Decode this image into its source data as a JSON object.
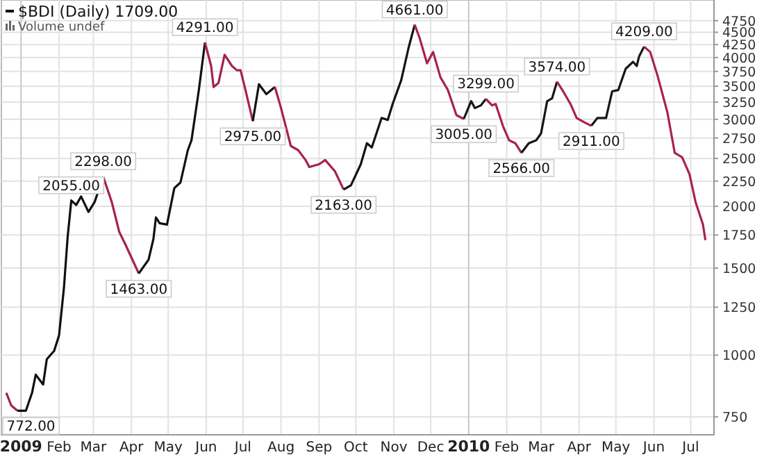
{
  "chart_data": {
    "type": "line",
    "title": "$BDI (Daily) 1709.00",
    "subtitle": "Volume undef",
    "xlim": [
      "2008-12-16",
      "2010-07-20"
    ],
    "xticks": [
      {
        "value": "2009-01",
        "label": "2009"
      },
      {
        "value": "2009-02",
        "label": "Feb"
      },
      {
        "value": "2009-03",
        "label": "Mar"
      },
      {
        "value": "2009-04",
        "label": "Apr"
      },
      {
        "value": "2009-05",
        "label": "May"
      },
      {
        "value": "2009-06",
        "label": "Jun"
      },
      {
        "value": "2009-07",
        "label": "Jul"
      },
      {
        "value": "2009-08",
        "label": "Aug"
      },
      {
        "value": "2009-09",
        "label": "Sep"
      },
      {
        "value": "2009-10",
        "label": "Oct"
      },
      {
        "value": "2009-11",
        "label": "Nov"
      },
      {
        "value": "2009-12",
        "label": "Dec"
      },
      {
        "value": "2010-01",
        "label": "2010"
      },
      {
        "value": "2010-02",
        "label": "Feb"
      },
      {
        "value": "2010-03",
        "label": "Mar"
      },
      {
        "value": "2010-04",
        "label": "Apr"
      },
      {
        "value": "2010-05",
        "label": "May"
      },
      {
        "value": "2010-06",
        "label": "Jun"
      },
      {
        "value": "2010-07",
        "label": "Jul"
      }
    ],
    "ylim": [
      690,
      5230
    ],
    "yticks": [
      750,
      1000,
      1250,
      1500,
      1750,
      2000,
      2250,
      2500,
      2750,
      3000,
      3250,
      3500,
      3750,
      4000,
      4250,
      4500,
      4750
    ],
    "log": true,
    "grid": true,
    "series": [
      {
        "color": "#a3224f",
        "x": [
          "2008-12-20",
          "2008-12-24",
          "2008-12-29"
        ],
        "values": [
          839,
          791,
          772
        ]
      },
      {
        "color": "#101010",
        "x": [
          "2008-12-29",
          "2009-01-05",
          "2009-01-10",
          "2009-01-13",
          "2009-01-19",
          "2009-01-22",
          "2009-01-28",
          "2009-02-01",
          "2009-02-05",
          "2009-02-08",
          "2009-02-11",
          "2009-02-15",
          "2009-02-19",
          "2009-02-25",
          "2009-03-02",
          "2009-03-09"
        ],
        "values": [
          772,
          772,
          839,
          913,
          872,
          981,
          1020,
          1096,
          1369,
          1732,
          2055,
          2013,
          2094,
          1949,
          2040,
          2298
        ]
      },
      {
        "color": "#a4224f",
        "x": [
          "2009-03-09",
          "2009-03-16",
          "2009-03-22",
          "2009-03-27",
          "2009-04-07"
        ],
        "values": [
          2298,
          2040,
          1778,
          1677,
          1463
        ]
      },
      {
        "color": "#111111",
        "x": [
          "2009-04-07",
          "2009-04-15",
          "2009-04-19",
          "2009-04-21",
          "2009-04-24",
          "2009-04-30",
          "2009-05-06",
          "2009-05-11",
          "2009-05-17",
          "2009-05-20",
          "2009-05-26",
          "2009-05-31"
        ],
        "values": [
          1463,
          1560,
          1721,
          1899,
          1849,
          1837,
          2177,
          2235,
          2598,
          2720,
          3439,
          4291
        ]
      },
      {
        "color": "#a5224f",
        "x": [
          "2009-05-31",
          "2009-06-05",
          "2009-06-07",
          "2009-06-11",
          "2009-06-16",
          "2009-06-22",
          "2009-06-26",
          "2009-06-29",
          "2009-07-03",
          "2009-07-09"
        ],
        "values": [
          4291,
          3846,
          3487,
          3554,
          4051,
          3846,
          3770,
          3770,
          3439,
          2975
        ]
      },
      {
        "color": "#131313",
        "x": [
          "2009-07-09",
          "2009-07-14",
          "2009-07-20",
          "2009-07-27"
        ],
        "values": [
          2975,
          3532,
          3374,
          3487
        ]
      },
      {
        "color": "#a6224f",
        "x": [
          "2009-07-27",
          "2009-08-01",
          "2009-08-09",
          "2009-08-15",
          "2009-08-21",
          "2009-08-24",
          "2009-09-01",
          "2009-09-06",
          "2009-09-14",
          "2009-09-21"
        ],
        "values": [
          3487,
          3161,
          2649,
          2598,
          2482,
          2402,
          2433,
          2482,
          2354,
          2163
        ]
      },
      {
        "color": "#141414",
        "x": [
          "2009-09-21",
          "2009-09-27",
          "2009-10-05",
          "2009-10-10",
          "2009-10-14",
          "2009-10-22",
          "2009-10-27",
          "2009-10-31",
          "2009-11-07",
          "2009-11-13",
          "2009-11-18"
        ],
        "values": [
          2163,
          2206,
          2433,
          2684,
          2632,
          3019,
          2990,
          3222,
          3601,
          4187,
          4661
        ]
      },
      {
        "color": "#a7224f",
        "x": [
          "2009-11-18",
          "2009-11-22",
          "2009-11-28",
          "2009-12-03",
          "2009-12-09",
          "2009-12-15",
          "2009-12-22",
          "2009-12-28"
        ],
        "values": [
          4661,
          4381,
          3894,
          4105,
          3648,
          3439,
          3059,
          3005
        ]
      },
      {
        "color": "#151515",
        "x": [
          "2009-12-28",
          "2010-01-03",
          "2010-01-06",
          "2010-01-11",
          "2010-01-15"
        ],
        "values": [
          3005,
          3265,
          3161,
          3202,
          3299
        ]
      },
      {
        "color": "#a8224f",
        "x": [
          "2010-01-15",
          "2010-01-20",
          "2010-01-23",
          "2010-01-29",
          "2010-02-03",
          "2010-02-08",
          "2010-02-13"
        ],
        "values": [
          3299,
          3202,
          3222,
          2904,
          2720,
          2684,
          2566
        ]
      },
      {
        "color": "#161616",
        "x": [
          "2010-02-13",
          "2010-02-19",
          "2010-02-25",
          "2010-03-01",
          "2010-03-06",
          "2010-03-10",
          "2010-03-14"
        ],
        "values": [
          2566,
          2684,
          2720,
          2810,
          3265,
          3308,
          3574
        ]
      },
      {
        "color": "#a9224f",
        "x": [
          "2010-03-14",
          "2010-03-19",
          "2010-03-25",
          "2010-03-30",
          "2010-04-05",
          "2010-04-11"
        ],
        "values": [
          3574,
          3418,
          3222,
          3019,
          2960,
          2911
        ]
      },
      {
        "color": "#171717",
        "x": [
          "2010-04-11",
          "2010-04-16",
          "2010-04-23",
          "2010-04-28",
          "2010-05-03",
          "2010-05-09",
          "2010-05-15",
          "2010-05-18",
          "2010-05-20",
          "2010-05-24"
        ],
        "values": [
          2911,
          3019,
          3019,
          3418,
          3439,
          3797,
          3921,
          3846,
          4025,
          4209
        ]
      },
      {
        "color": "#aa224f",
        "x": [
          "2010-05-24",
          "2010-05-29",
          "2010-06-04",
          "2010-06-12",
          "2010-06-18",
          "2010-06-24",
          "2010-06-30",
          "2010-07-05",
          "2010-07-11",
          "2010-07-13"
        ],
        "values": [
          4209,
          4105,
          3674,
          3099,
          2565,
          2514,
          2324,
          2040,
          1837,
          1709
        ]
      }
    ],
    "annotations": [
      {
        "text": "772.00",
        "x": "2008-12-29",
        "y": 772
      },
      {
        "text": "2055.00",
        "x": "2009-02-11",
        "y": 2055
      },
      {
        "text": "2298.00",
        "x": "2009-03-09",
        "y": 2298
      },
      {
        "text": "1463.00",
        "x": "2009-04-07",
        "y": 1463
      },
      {
        "text": "4291.00",
        "x": "2009-05-31",
        "y": 4291
      },
      {
        "text": "2975.00",
        "x": "2009-07-09",
        "y": 2975
      },
      {
        "text": "2163.00",
        "x": "2009-09-21",
        "y": 2163
      },
      {
        "text": "4661.00",
        "x": "2009-11-18",
        "y": 4661
      },
      {
        "text": "3005.00",
        "x": "2009-12-28",
        "y": 3005
      },
      {
        "text": "3299.00",
        "x": "2010-01-15",
        "y": 3299
      },
      {
        "text": "2566.00",
        "x": "2010-02-13",
        "y": 2566
      },
      {
        "text": "3574.00",
        "x": "2010-03-14",
        "y": 3574
      },
      {
        "text": "2911.00",
        "x": "2010-04-11",
        "y": 2911
      },
      {
        "text": "4209.00",
        "x": "2010-05-24",
        "y": 4209
      }
    ]
  }
}
